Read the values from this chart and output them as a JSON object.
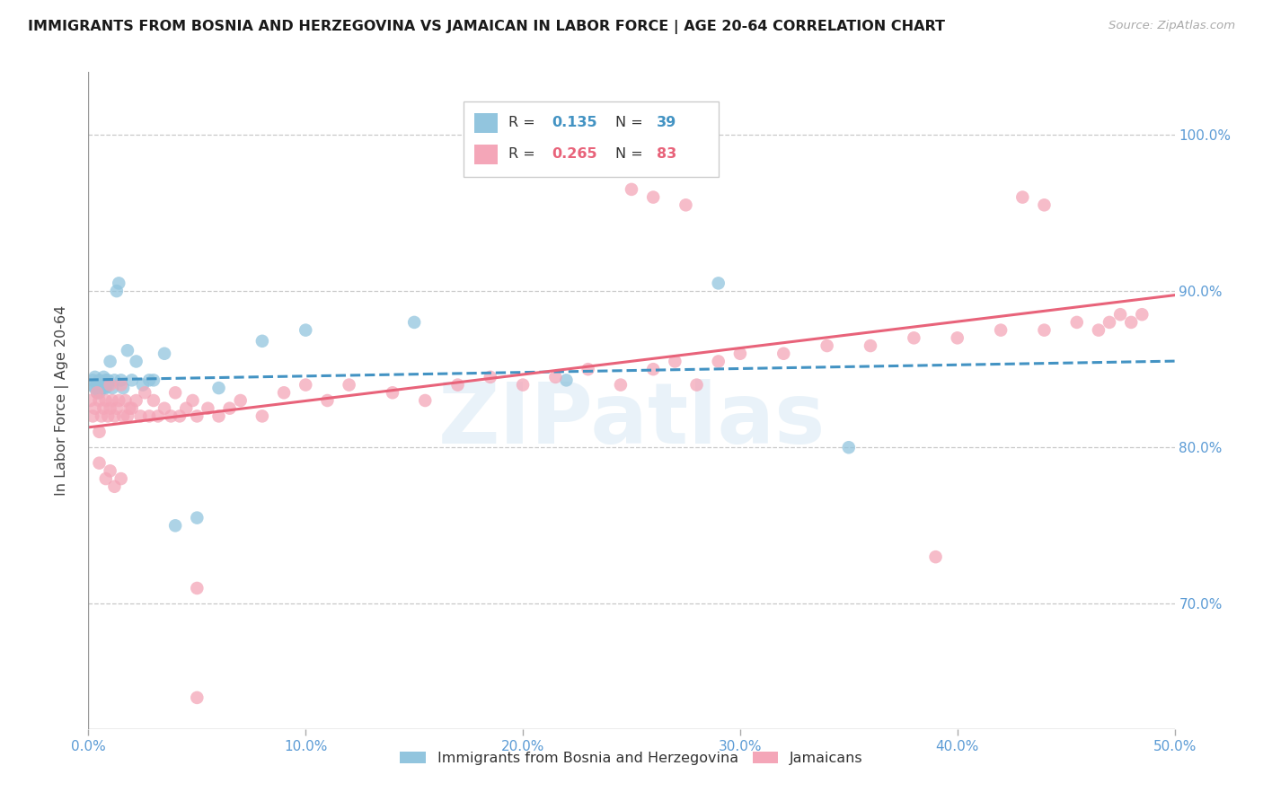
{
  "title": "IMMIGRANTS FROM BOSNIA AND HERZEGOVINA VS JAMAICAN IN LABOR FORCE | AGE 20-64 CORRELATION CHART",
  "source": "Source: ZipAtlas.com",
  "ylabel": "In Labor Force | Age 20-64",
  "yticks": [
    "100.0%",
    "90.0%",
    "80.0%",
    "70.0%"
  ],
  "ytick_vals": [
    1.0,
    0.9,
    0.8,
    0.7
  ],
  "xtick_vals": [
    0.0,
    0.1,
    0.2,
    0.3,
    0.4,
    0.5
  ],
  "xtick_labels": [
    "0.0%",
    "10.0%",
    "20.0%",
    "30.0%",
    "40.0%",
    "50.0%"
  ],
  "xlim": [
    0.0,
    0.5
  ],
  "ylim": [
    0.62,
    1.04
  ],
  "r_bosnia": 0.135,
  "n_bosnia": 39,
  "r_jamaican": 0.265,
  "n_jamaican": 83,
  "watermark": "ZIPatlas",
  "color_bosnia": "#92c5de",
  "color_jamaican": "#f4a6b8",
  "line_color_bosnia": "#4393c3",
  "line_color_jamaican": "#e8637a",
  "bosnia_x": [
    0.001,
    0.002,
    0.003,
    0.003,
    0.004,
    0.004,
    0.005,
    0.005,
    0.006,
    0.006,
    0.007,
    0.007,
    0.008,
    0.008,
    0.009,
    0.009,
    0.01,
    0.011,
    0.012,
    0.013,
    0.014,
    0.015,
    0.016,
    0.018,
    0.02,
    0.022,
    0.025,
    0.028,
    0.03,
    0.035,
    0.04,
    0.05,
    0.06,
    0.08,
    0.1,
    0.15,
    0.22,
    0.29,
    0.35
  ],
  "bosnia_y": [
    0.84,
    0.843,
    0.838,
    0.845,
    0.835,
    0.84,
    0.835,
    0.843,
    0.84,
    0.838,
    0.845,
    0.838,
    0.843,
    0.838,
    0.84,
    0.843,
    0.855,
    0.838,
    0.843,
    0.9,
    0.905,
    0.843,
    0.838,
    0.862,
    0.843,
    0.855,
    0.84,
    0.843,
    0.843,
    0.86,
    0.75,
    0.755,
    0.838,
    0.868,
    0.875,
    0.88,
    0.843,
    0.905,
    0.8
  ],
  "jamaican_x": [
    0.001,
    0.002,
    0.003,
    0.004,
    0.005,
    0.005,
    0.006,
    0.007,
    0.008,
    0.009,
    0.01,
    0.01,
    0.011,
    0.012,
    0.013,
    0.014,
    0.015,
    0.016,
    0.017,
    0.018,
    0.019,
    0.02,
    0.022,
    0.024,
    0.026,
    0.028,
    0.03,
    0.032,
    0.035,
    0.038,
    0.04,
    0.042,
    0.045,
    0.048,
    0.05,
    0.055,
    0.06,
    0.065,
    0.07,
    0.08,
    0.09,
    0.1,
    0.11,
    0.12,
    0.14,
    0.155,
    0.17,
    0.185,
    0.2,
    0.215,
    0.23,
    0.245,
    0.26,
    0.27,
    0.28,
    0.29,
    0.3,
    0.32,
    0.34,
    0.36,
    0.38,
    0.4,
    0.42,
    0.44,
    0.455,
    0.465,
    0.47,
    0.475,
    0.48,
    0.485,
    0.05,
    0.25,
    0.43,
    0.44,
    0.05,
    0.26,
    0.275,
    0.005,
    0.008,
    0.01,
    0.012,
    0.015,
    0.39
  ],
  "jamaican_y": [
    0.83,
    0.82,
    0.825,
    0.835,
    0.81,
    0.83,
    0.82,
    0.825,
    0.83,
    0.82,
    0.825,
    0.84,
    0.83,
    0.82,
    0.825,
    0.83,
    0.84,
    0.82,
    0.83,
    0.82,
    0.825,
    0.825,
    0.83,
    0.82,
    0.835,
    0.82,
    0.83,
    0.82,
    0.825,
    0.82,
    0.835,
    0.82,
    0.825,
    0.83,
    0.82,
    0.825,
    0.82,
    0.825,
    0.83,
    0.82,
    0.835,
    0.84,
    0.83,
    0.84,
    0.835,
    0.83,
    0.84,
    0.845,
    0.84,
    0.845,
    0.85,
    0.84,
    0.85,
    0.855,
    0.84,
    0.855,
    0.86,
    0.86,
    0.865,
    0.865,
    0.87,
    0.87,
    0.875,
    0.875,
    0.88,
    0.875,
    0.88,
    0.885,
    0.88,
    0.885,
    0.64,
    0.965,
    0.96,
    0.955,
    0.71,
    0.96,
    0.955,
    0.79,
    0.78,
    0.785,
    0.775,
    0.78,
    0.73
  ]
}
